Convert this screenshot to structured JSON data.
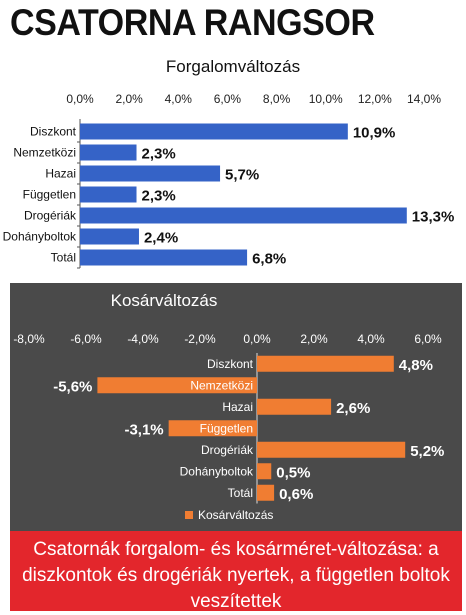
{
  "page_title": "CSATORNA RANGSOR",
  "footer_text": "Csatornák forgalom- és kosárméret-változása: a diszkontok és drogériák nyertek, a független boltok veszítettek",
  "colors": {
    "bar_blue": "#3563c7",
    "bar_orange": "#f07d32",
    "panel_dark": "#4a4a4a",
    "banner_red": "#e3262c"
  },
  "chart_data": [
    {
      "type": "bar",
      "orientation": "horizontal",
      "title": "Forgalomváltozás",
      "categories": [
        "Diszkont",
        "Nemzetközi",
        "Hazai",
        "Független",
        "Drogériák",
        "Dohányboltok",
        "Totál"
      ],
      "values": [
        10.9,
        2.3,
        5.7,
        2.3,
        13.3,
        2.4,
        6.8
      ],
      "value_labels": [
        "10,9%",
        "2,3%",
        "5,7%",
        "2,3%",
        "13,3%",
        "2,4%",
        "6,8%"
      ],
      "xlim": [
        0,
        14
      ],
      "ticks": [
        0,
        2,
        4,
        6,
        8,
        10,
        12,
        14
      ],
      "tick_labels": [
        "0,0%",
        "2,0%",
        "4,0%",
        "6,0%",
        "8,0%",
        "10,0%",
        "12,0%",
        "14,0%"
      ],
      "axis_position": "top",
      "grid": false
    },
    {
      "type": "bar",
      "orientation": "horizontal",
      "title": "Kosárváltozás",
      "categories": [
        "Diszkont",
        "Nemzetközi",
        "Hazai",
        "Független",
        "Drogériák",
        "Dohányboltok",
        "Totál"
      ],
      "values": [
        4.8,
        -5.6,
        2.6,
        -3.1,
        5.2,
        0.5,
        0.6
      ],
      "value_labels": [
        "4,8%",
        "-5,6%",
        "2,6%",
        "-3,1%",
        "5,2%",
        "0,5%",
        "0,6%"
      ],
      "xlim": [
        -8,
        6
      ],
      "ticks": [
        -8,
        -6,
        -4,
        -2,
        0,
        2,
        4,
        6
      ],
      "tick_labels": [
        "-8,0%",
        "-6,0%",
        "-4,0%",
        "-2,0%",
        "0,0%",
        "2,0%",
        "4,0%",
        "6,0%"
      ],
      "axis_position": "top",
      "legend": "Kosárváltozás",
      "legend_position": "bottom-left",
      "grid": false
    }
  ]
}
